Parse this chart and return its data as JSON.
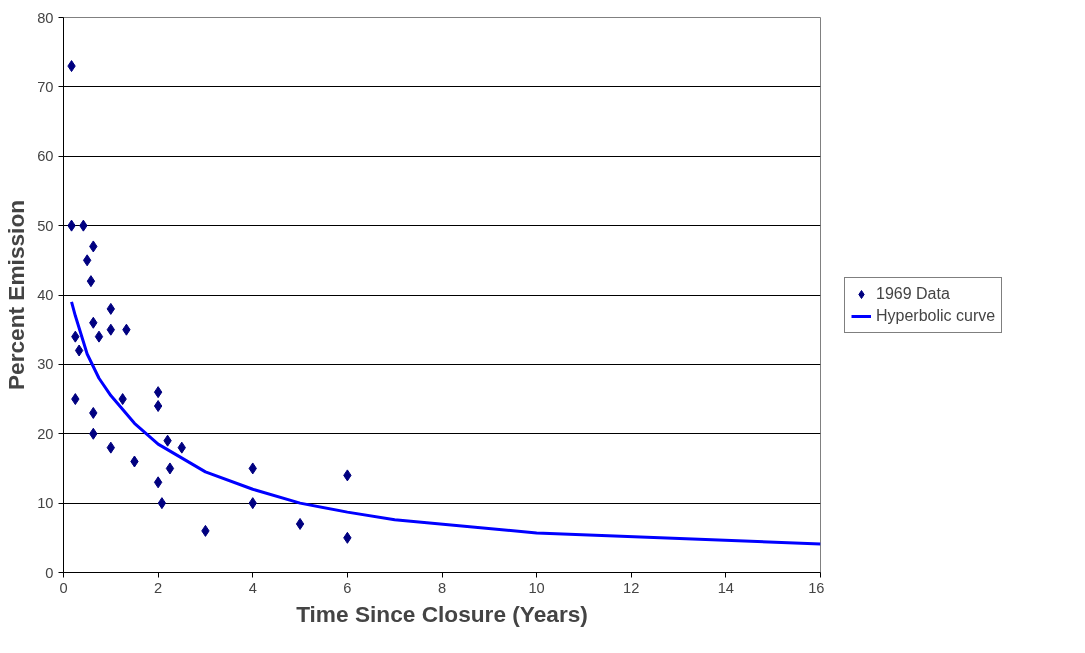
{
  "chart_data": {
    "type": "scatter",
    "xlabel": "Time Since Closure (Years)",
    "ylabel": "Percent Emission",
    "xlim": [
      0,
      16
    ],
    "xticks": [
      0,
      2,
      4,
      6,
      8,
      10,
      12,
      14,
      16
    ],
    "ylim": [
      0,
      80
    ],
    "yticks": [
      0,
      10,
      20,
      30,
      40,
      50,
      60,
      70,
      80
    ],
    "grid": "y",
    "legend": "right",
    "series": [
      {
        "name": "1969 Data",
        "marker": "diamond",
        "color": "#000080",
        "x": [
          0.17,
          0.17,
          0.42,
          0.5,
          0.58,
          0.63,
          0.63,
          0.25,
          0.33,
          0.75,
          1,
          1,
          1.33,
          0.25,
          0.63,
          0.63,
          1,
          1.25,
          1.5,
          2,
          2,
          2,
          2.08,
          2.2,
          2.25,
          2.5,
          3,
          4,
          4,
          5,
          6,
          6
        ],
        "values": [
          73,
          50,
          50,
          45,
          42,
          47,
          36,
          34,
          32,
          34,
          38,
          35,
          35,
          25,
          23,
          20,
          18,
          25,
          16,
          26,
          24,
          13,
          10,
          19,
          15,
          18,
          6,
          15,
          10,
          7,
          14,
          5
        ]
      },
      {
        "name": "Hyperbolic curve",
        "type": "line",
        "marker": "none",
        "line_style": "solid",
        "color": "#0000ff",
        "x": [
          0.17,
          0.25,
          0.5,
          0.75,
          1,
          1.5,
          2,
          3,
          4,
          5,
          6,
          7,
          10,
          16
        ],
        "values": [
          39,
          37,
          31.5,
          28,
          25.5,
          21.5,
          18.5,
          14.5,
          12,
          10,
          8.7,
          7.6,
          5.7,
          4.1
        ]
      }
    ]
  }
}
